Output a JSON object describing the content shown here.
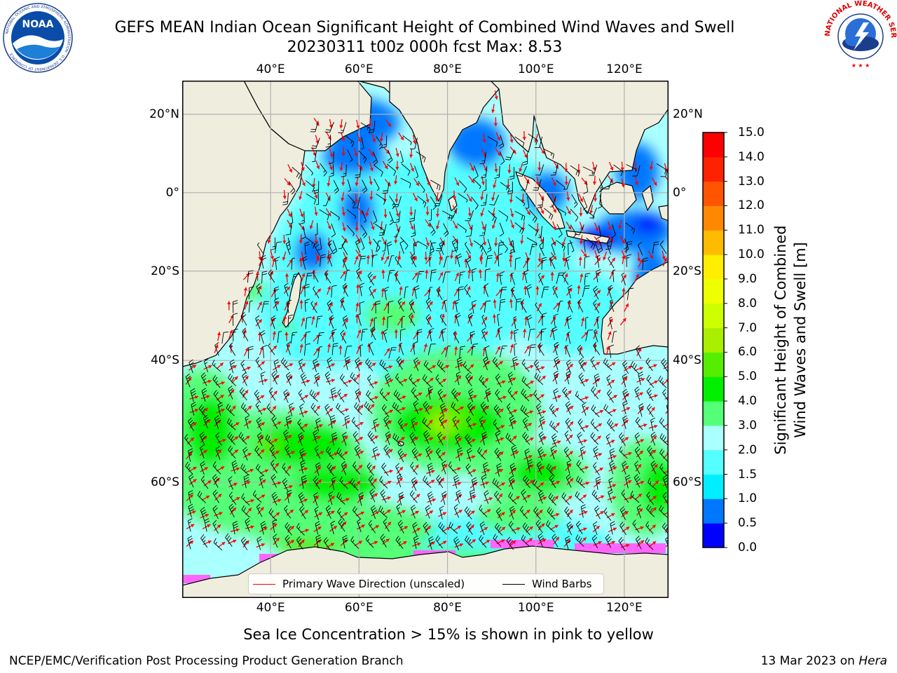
{
  "header": {
    "title_line1": "GEFS MEAN Indian Ocean Significant Height of Combined Wind Waves and Swell",
    "title_line2": "20230311 t00z 000h fcst   Max: 8.53"
  },
  "logos": {
    "left": "NOAA",
    "right": "NATIONAL WEATHER SERVICE",
    "left_icon": "noaa-logo",
    "right_icon": "nws-logo"
  },
  "map": {
    "lon_ticks": [
      "40°E",
      "60°E",
      "80°E",
      "100°E",
      "120°E"
    ],
    "lon_values": [
      40,
      60,
      80,
      100,
      120
    ],
    "lat_ticks_left": [
      "20°N",
      "0°",
      "20°S",
      "40°S",
      "60°S"
    ],
    "lat_ticks_right": [
      "20°N",
      "0°",
      "20°S",
      "40°S",
      "60°S"
    ],
    "lat_values": [
      20,
      0,
      -20,
      -40,
      -60
    ],
    "extent": {
      "lon_min": 20,
      "lon_max": 130,
      "lat_min": -72,
      "lat_max": 28
    },
    "colors": {
      "land": "#efedde",
      "ice": "#ff66ff"
    }
  },
  "colorbar": {
    "ticks": [
      "0.0",
      "0.5",
      "1.0",
      "1.5",
      "2.0",
      "3.0",
      "4.0",
      "5.0",
      "6.0",
      "7.0",
      "8.0",
      "9.0",
      "10.0",
      "11.0",
      "12.0",
      "13.0",
      "14.0",
      "15.0"
    ],
    "colors": [
      "#0000ff",
      "#0077ff",
      "#00eeff",
      "#55ffff",
      "#aaffff",
      "#55ff77",
      "#00ee00",
      "#55ee00",
      "#aaee00",
      "#ccff00",
      "#eeff00",
      "#ffee00",
      "#ffbb00",
      "#ff8800",
      "#ff5500",
      "#ff2200",
      "#ff0000"
    ],
    "label_line1": "Significant Height of Combined",
    "label_line2": "Wind Waves and Swell [m]"
  },
  "legend": {
    "wave_label": "Primary Wave Direction (unscaled)",
    "wave_color": "#ff0000",
    "barb_label": "Wind Barbs",
    "barb_color": "#000000"
  },
  "footer": {
    "note": "Sea Ice Concentration > 15% is shown in pink to yellow",
    "credit": "NCEP/EMC/Verification Post Processing Product Generation Branch",
    "date": "13 Mar 2023 on ",
    "host": "Hera"
  }
}
